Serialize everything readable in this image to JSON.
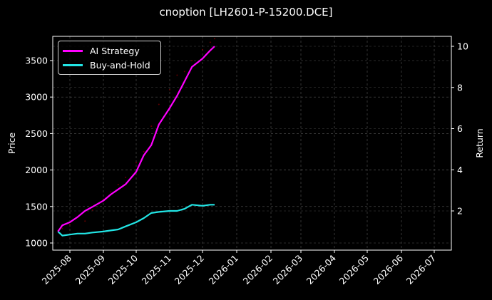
{
  "chart_data": {
    "type": "line",
    "title": "cnoption [LH2601-P-15200.DCE]",
    "xlabel": "",
    "ylabel": "Price",
    "ylabel_right": "Return",
    "ylim_left": [
      910,
      3830
    ],
    "ylim_right": [
      0.2,
      10.5
    ],
    "yticks_left": [
      1000,
      1500,
      2000,
      2500,
      3000,
      3500
    ],
    "yticks_right": [
      2,
      4,
      6,
      8,
      10
    ],
    "xticks": [
      "2025-08",
      "2025-09",
      "2025-10",
      "2025-11",
      "2025-12",
      "2026-01",
      "2026-02",
      "2026-03",
      "2026-04",
      "2026-05",
      "2026-06",
      "2026-07"
    ],
    "grid": true,
    "legend_position": "upper left",
    "legend": [
      "AI Strategy",
      "Buy-and-Hold"
    ],
    "x": [
      "2025-07-21",
      "2025-07-25",
      "2025-08-01",
      "2025-08-08",
      "2025-08-15",
      "2025-08-22",
      "2025-09-01",
      "2025-09-08",
      "2025-09-15",
      "2025-09-22",
      "2025-10-01",
      "2025-10-08",
      "2025-10-15",
      "2025-10-22",
      "2025-11-01",
      "2025-11-08",
      "2025-11-15",
      "2025-11-22",
      "2025-12-01",
      "2025-12-08",
      "2025-12-12"
    ],
    "series": [
      {
        "name": "AI Strategy",
        "color": "#ff00ff",
        "axis": "right",
        "values": [
          1.0,
          1.3,
          1.45,
          1.7,
          2.0,
          2.2,
          2.5,
          2.8,
          3.05,
          3.3,
          3.9,
          4.7,
          5.2,
          6.2,
          7.0,
          7.6,
          8.3,
          9.0,
          9.4,
          9.8,
          10.0
        ]
      },
      {
        "name": "Buy-and-Hold",
        "color": "#22e5e5",
        "axis": "right",
        "values": [
          1.0,
          0.8,
          0.85,
          0.9,
          0.9,
          0.95,
          1.0,
          1.05,
          1.1,
          1.25,
          1.45,
          1.65,
          1.9,
          1.95,
          2.0,
          2.0,
          2.1,
          2.3,
          2.25,
          2.3,
          2.3
        ]
      },
      {
        "name": "Price",
        "color": "#8b0000",
        "axis": "left",
        "style": "scatter-faint",
        "values": [
          1170,
          1200,
          1250,
          1350,
          1300,
          1450,
          1600,
          1700,
          1800,
          1900,
          2100,
          2250,
          2600,
          2900,
          3100,
          3300,
          3350,
          3500,
          3650,
          3750,
          3800
        ]
      }
    ]
  },
  "legend": {
    "items": [
      {
        "label": "AI Strategy",
        "color": "#ff00ff"
      },
      {
        "label": "Buy-and-Hold",
        "color": "#22e5e5"
      }
    ]
  }
}
